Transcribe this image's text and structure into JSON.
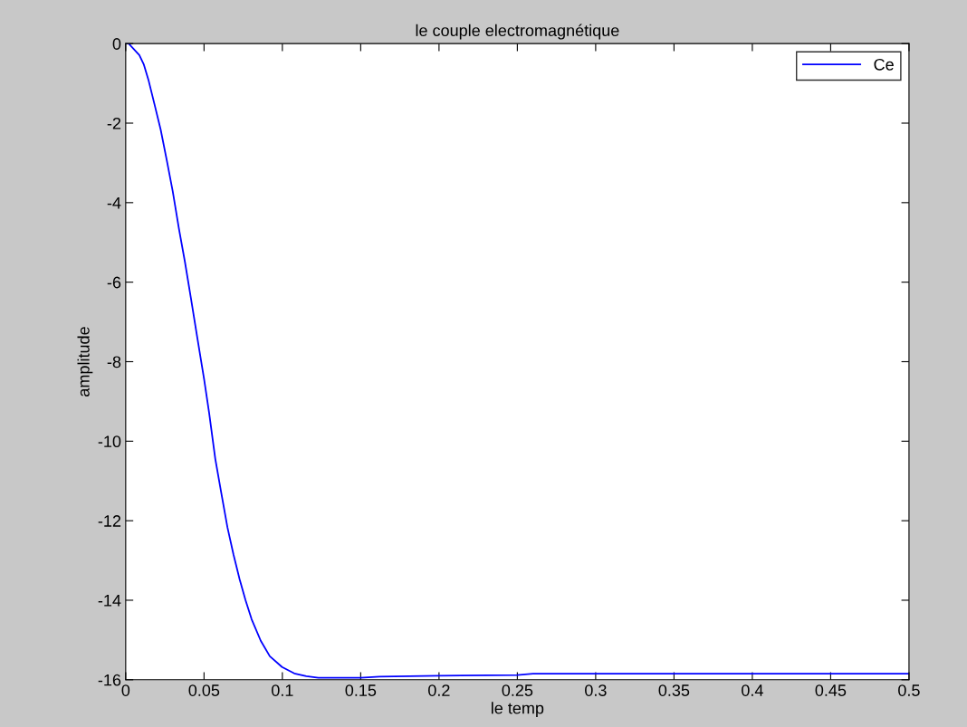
{
  "chart_data": {
    "type": "line",
    "title": "le couple electromagnétique",
    "xlabel": "le temp",
    "ylabel": "amplitude",
    "xlim": [
      0,
      0.5
    ],
    "xticks": [
      0,
      0.05,
      0.1,
      0.15,
      0.2,
      0.25,
      0.3,
      0.35,
      0.4,
      0.45,
      0.5
    ],
    "ylim": [
      -16,
      0
    ],
    "yticks": [
      -16,
      -14,
      -12,
      -10,
      -8,
      -6,
      -4,
      -2,
      0
    ],
    "grid": false,
    "legend": "top right",
    "marker": "none",
    "line_style": "solid",
    "series": [
      {
        "name": "Ce",
        "color": "#0000ff",
        "x": [
          0,
          0.0019,
          0.0087,
          0.0116,
          0.0145,
          0.0184,
          0.0223,
          0.0262,
          0.03,
          0.0339,
          0.0378,
          0.0417,
          0.0455,
          0.05,
          0.0533,
          0.0572,
          0.061,
          0.0649,
          0.0688,
          0.0727,
          0.0765,
          0.0804,
          0.0862,
          0.092,
          0.0998,
          0.1076,
          0.1153,
          0.123,
          0.15,
          0.162,
          0.2,
          0.25,
          0.26,
          0.3,
          0.4,
          0.5
        ],
        "values": [
          0,
          0,
          -0.29,
          -0.53,
          -0.91,
          -1.53,
          -2.16,
          -2.93,
          -3.71,
          -4.64,
          -5.49,
          -6.42,
          -7.35,
          -8.43,
          -9.3,
          -10.45,
          -11.3,
          -12.16,
          -12.85,
          -13.47,
          -14.0,
          -14.48,
          -15.02,
          -15.41,
          -15.68,
          -15.84,
          -15.91,
          -15.95,
          -15.95,
          -15.92,
          -15.9,
          -15.88,
          -15.85,
          -15.85,
          -15.85,
          -15.85
        ]
      }
    ]
  }
}
